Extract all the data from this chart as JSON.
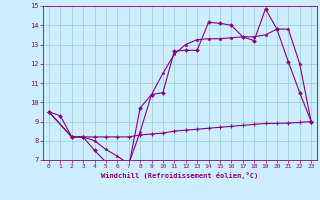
{
  "bg_color": "#cceeff",
  "line_color": "#880088",
  "grid_color": "#99cccc",
  "xlabel": "Windchill (Refroidissement éolien,°C)",
  "xlim": [
    -0.5,
    23.5
  ],
  "ylim": [
    7,
    15
  ],
  "yticks": [
    7,
    8,
    9,
    10,
    11,
    12,
    13,
    14,
    15
  ],
  "xticks": [
    0,
    1,
    2,
    3,
    4,
    5,
    6,
    7,
    8,
    9,
    10,
    11,
    12,
    13,
    14,
    15,
    16,
    17,
    18,
    19,
    20,
    21,
    22,
    23
  ],
  "line1_x": [
    0,
    1,
    2,
    3,
    4,
    5,
    6,
    7,
    8,
    9,
    10,
    11,
    12,
    13,
    14,
    15,
    16,
    17,
    18,
    19,
    20,
    21,
    22,
    23
  ],
  "line1_y": [
    9.5,
    9.3,
    8.2,
    8.2,
    7.5,
    6.9,
    6.75,
    6.65,
    9.7,
    10.4,
    10.5,
    12.65,
    12.7,
    12.7,
    14.15,
    14.1,
    14.0,
    13.4,
    13.2,
    14.85,
    13.8,
    12.1,
    10.5,
    9.0
  ],
  "line2_x": [
    0,
    2,
    3,
    4,
    5,
    6,
    7,
    8,
    9,
    10,
    11,
    12,
    13,
    14,
    15,
    16,
    17,
    18,
    19,
    20,
    21,
    22,
    23
  ],
  "line2_y": [
    9.5,
    8.2,
    8.2,
    8.2,
    8.2,
    8.2,
    8.2,
    8.3,
    8.35,
    8.4,
    8.5,
    8.55,
    8.6,
    8.65,
    8.7,
    8.75,
    8.8,
    8.85,
    8.9,
    8.9,
    8.92,
    8.95,
    9.0
  ],
  "line3_x": [
    0,
    2,
    3,
    4,
    5,
    6,
    7,
    8,
    9,
    10,
    11,
    12,
    13,
    14,
    15,
    16,
    17,
    18,
    19,
    20,
    21,
    22,
    23
  ],
  "line3_y": [
    9.5,
    8.2,
    8.2,
    8.0,
    7.55,
    7.2,
    6.8,
    8.45,
    10.4,
    11.5,
    12.5,
    13.0,
    13.25,
    13.3,
    13.3,
    13.35,
    13.4,
    13.4,
    13.5,
    13.8,
    13.8,
    12.0,
    9.0
  ]
}
